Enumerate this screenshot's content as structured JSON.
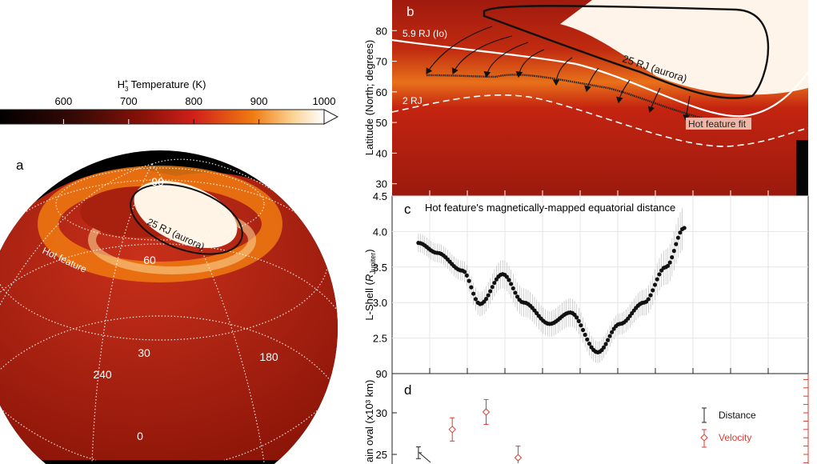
{
  "colorbar": {
    "title": "H3+ Temperature (K)",
    "title_main": "H",
    "title_sub": "3",
    "title_sup": "+",
    "title_rest": " Temperature (K)",
    "ticks": [
      "600",
      "700",
      "800",
      "900",
      "1000"
    ],
    "tick_values": [
      600,
      700,
      800,
      900,
      1000
    ],
    "range": [
      500,
      1000
    ],
    "colors": [
      "#000000",
      "#3a0a06",
      "#8a1208",
      "#d0201a",
      "#f07a10",
      "#fad090",
      "#ffffff"
    ]
  },
  "panel_a": {
    "label": "a",
    "lat_labels": [
      "90",
      "60",
      "30",
      "0"
    ],
    "lon_labels": [
      "240",
      "180"
    ],
    "hot_feature_label": "Hot feature",
    "aurora_label": "25 RJ (aurora)"
  },
  "chart_data": [
    {
      "panel": "b",
      "type": "heatmap",
      "label": "b",
      "ylabel": "Latitude (North; degrees)",
      "yticks": [
        "80",
        "70",
        "60",
        "50",
        "40",
        "30"
      ],
      "ylim": [
        26,
        90
      ],
      "annotations": {
        "io": "5.9 RJ (Io)",
        "two_rj": "2 RJ",
        "aurora": "25 RJ (aurora)",
        "fit": "Hot feature fit"
      }
    },
    {
      "panel": "c",
      "type": "scatter",
      "label": "c",
      "title": "Hot feature's magnetically-mapped equatorial distance",
      "ylabel": "L-Shell (RJupiter)",
      "ylabel_main": "L-Shell (",
      "ylabel_r": "R",
      "ylabel_sub": "Jupiter",
      "ylabel_end": ")",
      "yticks": [
        "4.5",
        "4.0",
        "3.5",
        "3.0",
        "2.5"
      ],
      "ylim": [
        2.0,
        4.5
      ],
      "xlim": [
        0,
        11
      ],
      "x": [
        0.7,
        1.2,
        1.87,
        2.34,
        2.94,
        3.5,
        4.19,
        4.74,
        5.47,
        6.06,
        6.7,
        7.28,
        7.77
      ],
      "y": [
        3.84,
        3.7,
        3.45,
        2.98,
        3.4,
        3.0,
        2.7,
        2.86,
        2.3,
        2.7,
        3.0,
        3.5,
        4.05
      ],
      "yerr": [
        0.13,
        0.13,
        0.14,
        0.17,
        0.2,
        0.2,
        0.18,
        0.2,
        0.15,
        0.15,
        0.18,
        0.25,
        0.3
      ]
    },
    {
      "panel": "d",
      "type": "scatter",
      "label": "d",
      "ylabel": "ain oval (x10³ km)",
      "yticks": [
        "90",
        "30",
        "25"
      ],
      "ylim": [
        20.5,
        34.6
      ],
      "legend": [
        "Distance",
        "Velocity"
      ],
      "legend_position": "right",
      "series": [
        {
          "name": "Distance",
          "x": [
            0.7
          ],
          "y": [
            25.2
          ],
          "yerr": [
            0.7
          ],
          "color": "#222222"
        },
        {
          "name": "Velocity",
          "x": [
            1.6,
            2.5,
            3.35
          ],
          "y": [
            28.0,
            30.1,
            24.6
          ],
          "yerr": [
            1.4,
            1.5,
            1.4
          ],
          "color": "#e03a2e"
        }
      ]
    }
  ]
}
